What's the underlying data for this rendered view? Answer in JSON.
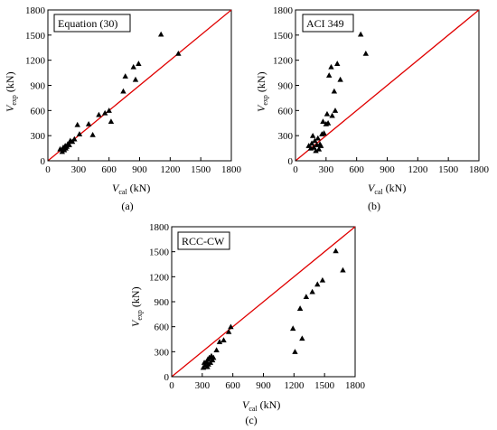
{
  "figure": {
    "background": "#ffffff"
  },
  "style": {
    "identity_line_color": "#e00000",
    "marker_color": "#000000"
  },
  "chart_data": [
    {
      "type": "scatter",
      "panel_label": "(a)",
      "legend_text": "Equation (30)",
      "xlabel": {
        "var": "V",
        "sub": "cal",
        "unit": " (kN)"
      },
      "ylabel": {
        "var": "V",
        "sub": "exp",
        "unit": " (kN)"
      },
      "xlim": [
        0,
        1800
      ],
      "ylim": [
        0,
        1800
      ],
      "xticks": [
        "0",
        "300",
        "600",
        "900",
        "1200",
        "1500",
        "1800"
      ],
      "yticks": [
        "0",
        "300",
        "600",
        "900",
        "1200",
        "1500",
        "1800"
      ],
      "identity_line": true,
      "points": [
        [
          120,
          140
        ],
        [
          140,
          110
        ],
        [
          150,
          160
        ],
        [
          160,
          130
        ],
        [
          170,
          180
        ],
        [
          175,
          150
        ],
        [
          185,
          170
        ],
        [
          195,
          200
        ],
        [
          210,
          190
        ],
        [
          220,
          240
        ],
        [
          240,
          230
        ],
        [
          260,
          260
        ],
        [
          290,
          430
        ],
        [
          310,
          320
        ],
        [
          400,
          440
        ],
        [
          440,
          310
        ],
        [
          500,
          550
        ],
        [
          560,
          570
        ],
        [
          600,
          600
        ],
        [
          620,
          470
        ],
        [
          740,
          830
        ],
        [
          760,
          1010
        ],
        [
          840,
          1120
        ],
        [
          860,
          970
        ],
        [
          890,
          1160
        ],
        [
          1110,
          1510
        ],
        [
          1280,
          1280
        ]
      ]
    },
    {
      "type": "scatter",
      "panel_label": "(b)",
      "legend_text": "ACI 349",
      "xlabel": {
        "var": "V",
        "sub": "cal",
        "unit": " (kN)"
      },
      "ylabel": {
        "var": "V",
        "sub": "exp",
        "unit": " (kN)"
      },
      "xlim": [
        0,
        1800
      ],
      "ylim": [
        0,
        1800
      ],
      "xticks": [
        "0",
        "300",
        "600",
        "900",
        "1200",
        "1500",
        "1800"
      ],
      "yticks": [
        "0",
        "300",
        "600",
        "900",
        "1200",
        "1500",
        "1800"
      ],
      "identity_line": true,
      "points": [
        [
          130,
          180
        ],
        [
          150,
          150
        ],
        [
          160,
          210
        ],
        [
          170,
          300
        ],
        [
          180,
          160
        ],
        [
          190,
          240
        ],
        [
          200,
          120
        ],
        [
          210,
          190
        ],
        [
          220,
          270
        ],
        [
          230,
          140
        ],
        [
          240,
          200
        ],
        [
          250,
          180
        ],
        [
          260,
          320
        ],
        [
          270,
          470
        ],
        [
          280,
          330
        ],
        [
          300,
          440
        ],
        [
          310,
          560
        ],
        [
          320,
          450
        ],
        [
          330,
          1020
        ],
        [
          350,
          1120
        ],
        [
          360,
          540
        ],
        [
          380,
          830
        ],
        [
          390,
          600
        ],
        [
          410,
          1160
        ],
        [
          440,
          970
        ],
        [
          640,
          1510
        ],
        [
          690,
          1280
        ]
      ]
    },
    {
      "type": "scatter",
      "panel_label": "(c)",
      "legend_text": "RCC-CW",
      "xlabel": {
        "var": "V",
        "sub": "cal",
        "unit": " (kN)"
      },
      "ylabel": {
        "var": "V",
        "sub": "exp",
        "unit": " (kN)"
      },
      "xlim": [
        0,
        1800
      ],
      "ylim": [
        0,
        1800
      ],
      "xticks": [
        "0",
        "300",
        "600",
        "900",
        "1200",
        "1500",
        "1800"
      ],
      "yticks": [
        "0",
        "300",
        "600",
        "900",
        "1200",
        "1500",
        "1800"
      ],
      "identity_line": true,
      "points": [
        [
          310,
          110
        ],
        [
          320,
          170
        ],
        [
          330,
          140
        ],
        [
          340,
          180
        ],
        [
          350,
          120
        ],
        [
          355,
          210
        ],
        [
          360,
          150
        ],
        [
          370,
          230
        ],
        [
          380,
          170
        ],
        [
          390,
          250
        ],
        [
          400,
          200
        ],
        [
          410,
          230
        ],
        [
          440,
          320
        ],
        [
          470,
          420
        ],
        [
          510,
          440
        ],
        [
          560,
          540
        ],
        [
          580,
          600
        ],
        [
          1190,
          580
        ],
        [
          1210,
          300
        ],
        [
          1260,
          820
        ],
        [
          1280,
          460
        ],
        [
          1320,
          960
        ],
        [
          1380,
          1020
        ],
        [
          1430,
          1110
        ],
        [
          1480,
          1160
        ],
        [
          1610,
          1510
        ],
        [
          1680,
          1280
        ]
      ]
    }
  ]
}
